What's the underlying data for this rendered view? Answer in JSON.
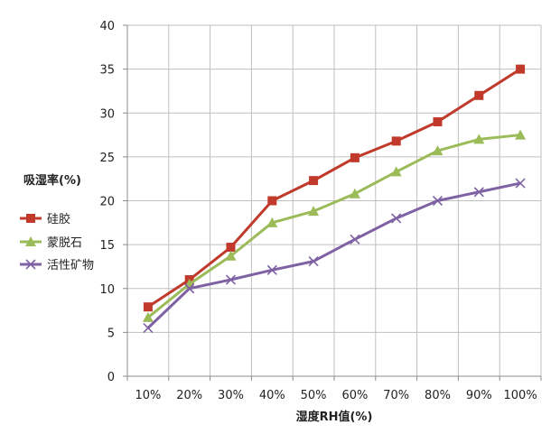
{
  "chart_data": {
    "type": "line",
    "title": "",
    "xlabel": "湿度RH值(%)",
    "ylabel": "吸湿率(%)",
    "categories": [
      "10%",
      "20%",
      "30%",
      "40%",
      "50%",
      "60%",
      "70%",
      "80%",
      "90%",
      "100%"
    ],
    "ylim": [
      0,
      40
    ],
    "yticks": [
      0,
      5,
      10,
      15,
      20,
      25,
      30,
      35,
      40
    ],
    "grid": true,
    "legend_position": "left",
    "series": [
      {
        "name": "硅胶",
        "color": "#c0392b",
        "marker": "square",
        "values": [
          7.9,
          11.0,
          14.7,
          20.0,
          22.3,
          24.9,
          26.8,
          29.0,
          32.0,
          35.0
        ]
      },
      {
        "name": "蒙脱石",
        "color": "#9bbb59",
        "marker": "triangle",
        "values": [
          6.7,
          10.5,
          13.7,
          17.5,
          18.8,
          20.8,
          23.3,
          25.7,
          27.0,
          27.5
        ]
      },
      {
        "name": "活性矿物",
        "color": "#7f62a3",
        "marker": "x",
        "values": [
          5.5,
          10.0,
          11.0,
          12.1,
          13.1,
          15.6,
          18.0,
          20.0,
          21.0,
          22.0
        ]
      }
    ]
  }
}
